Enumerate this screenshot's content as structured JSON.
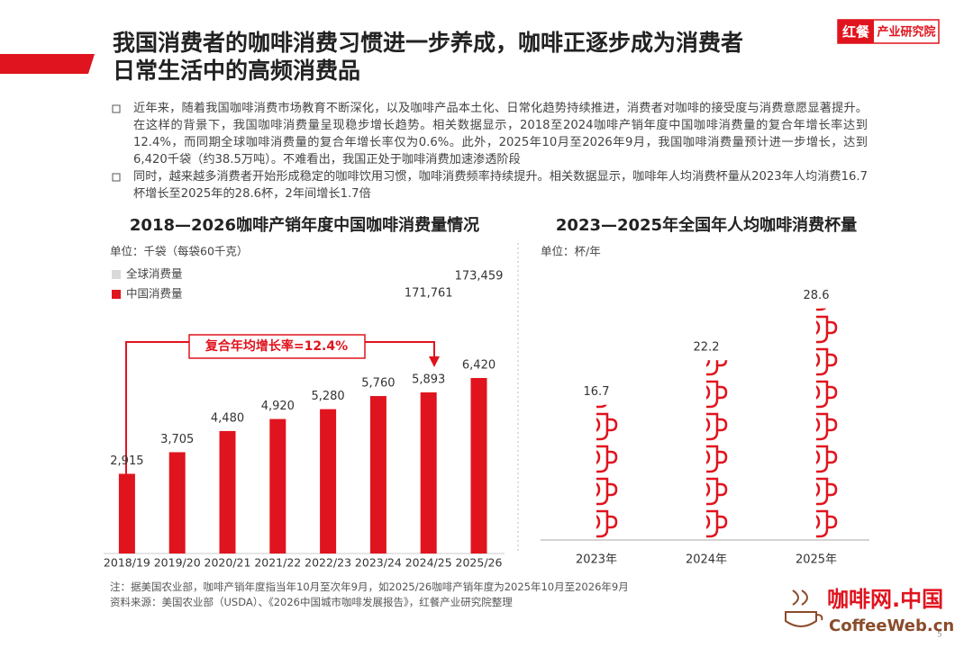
{
  "header": {
    "title_lines": [
      "我国消费者的咖啡消费习惯进一步养成，咖啡正逐步成为消费者",
      "日常生活中的高频消费品"
    ],
    "logo_brand": "红餐",
    "logo_text": "产业研究院"
  },
  "bullets": [
    "近年来，随着我国咖啡消费市场教育不断深化，以及咖啡产品本土化、日常化趋势持续推进，消费者对咖啡的接受度与消费意愿显著提升。在这样的背景下，我国咖啡消费量呈现稳步增长趋势。相关数据显示，2018至2024咖啡产销年度中国咖啡消费量的复合年增长率达到12.4%，而同期全球咖啡消费量的复合年增长率仅为0.6%。此外，2025年10月至2026年9月，我国咖啡消费量预计进一步增长，达到6,420千袋（约38.5万吨）。不难看出，我国正处于咖啡消费加速渗透阶段",
    "同时，越来越多消费者开始形成稳定的咖啡饮用习惯，咖啡消费频率持续提升。相关数据显示，咖啡年人均消费杯量从2023年人均消费16.7杯增长至2025年的28.6杯，2年间增长1.7倍"
  ],
  "chart_data": [
    {
      "type": "bar",
      "title": "2018—2026咖啡产销年度中国咖啡消费量情况",
      "unit": "单位：千袋（每袋60千克）",
      "categories": [
        "2018/19",
        "2019/20",
        "2020/21",
        "2021/22",
        "2022/23",
        "2023/24",
        "2024/25",
        "2025/26"
      ],
      "series": [
        {
          "name": "全球消费量",
          "color": "#d9d9d9",
          "values": [
            null,
            null,
            null,
            null,
            null,
            null,
            171761,
            173459
          ],
          "value_labels": [
            null,
            null,
            null,
            null,
            null,
            null,
            "171,761",
            "173,459"
          ]
        },
        {
          "name": "中国消费量",
          "color": "#e0141e",
          "values": [
            2915,
            3705,
            4480,
            4920,
            5280,
            5760,
            5893,
            6420
          ],
          "value_labels": [
            "2,915",
            "3,705",
            "4,480",
            "4,920",
            "5,280",
            "5,760",
            "5,893",
            "6,420"
          ]
        }
      ],
      "annotation": "复合年均增长率=12.4%"
    },
    {
      "type": "pictogram",
      "title": "2023—2025年全国年人均咖啡消费杯量",
      "unit": "单位：杯/年",
      "categories": [
        "2023年",
        "2024年",
        "2025年"
      ],
      "values": [
        16.7,
        22.2,
        28.6
      ],
      "color": "#e0141e"
    }
  ],
  "notes": [
    "注：据美国农业部，咖啡产销年度指当年10月至次年9月，如2025/26咖啡产销年度为2025年10月至2026年9月",
    "资料来源：美国农业部（USDA）、《2026中国城市咖啡发展报告》，红餐产业研究院整理"
  ],
  "footer": {
    "brand": "咖啡网.中国",
    "site": "CoffeeWeb.cn",
    "page": "5"
  }
}
